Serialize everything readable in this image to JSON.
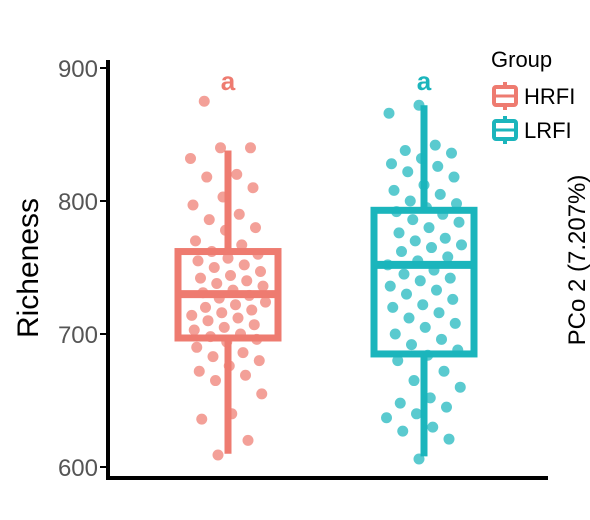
{
  "chart_data": {
    "type": "box",
    "ylabel": "Richeness",
    "ylim": [
      600,
      900
    ],
    "yticks": [
      600,
      700,
      800,
      900
    ],
    "legend": {
      "title": "Group",
      "placement": "top-right"
    },
    "side_label": "PCo 2 (7.207%)",
    "groups": [
      {
        "name": "HRFI",
        "color": "#EE7B70",
        "significance": "a",
        "box": {
          "min": 610,
          "q1": 697,
          "median": 730,
          "q3": 762,
          "max": 838
        },
        "points": [
          875,
          840,
          840,
          832,
          820,
          818,
          810,
          803,
          797,
          790,
          786,
          780,
          778,
          770,
          767,
          762,
          760,
          757,
          755,
          752,
          750,
          747,
          744,
          742,
          740,
          738,
          736,
          733,
          731,
          729,
          727,
          724,
          722,
          720,
          718,
          716,
          714,
          712,
          710,
          707,
          705,
          703,
          700,
          698,
          696,
          694,
          690,
          686,
          683,
          680,
          676,
          672,
          669,
          665,
          655,
          640,
          636,
          620,
          609
        ]
      },
      {
        "name": "LRFI",
        "color": "#1BB5BC",
        "significance": "a",
        "box": {
          "min": 608,
          "q1": 685,
          "median": 752,
          "q3": 793,
          "max": 872
        },
        "points": [
          872,
          866,
          842,
          838,
          836,
          832,
          828,
          826,
          822,
          818,
          812,
          808,
          805,
          800,
          798,
          795,
          792,
          790,
          786,
          784,
          780,
          776,
          772,
          770,
          767,
          765,
          762,
          758,
          755,
          752,
          748,
          745,
          742,
          740,
          736,
          733,
          730,
          726,
          722,
          720,
          716,
          712,
          708,
          705,
          700,
          696,
          692,
          688,
          684,
          680,
          672,
          665,
          660,
          652,
          648,
          645,
          640,
          637,
          630,
          627,
          621,
          606
        ]
      }
    ]
  }
}
